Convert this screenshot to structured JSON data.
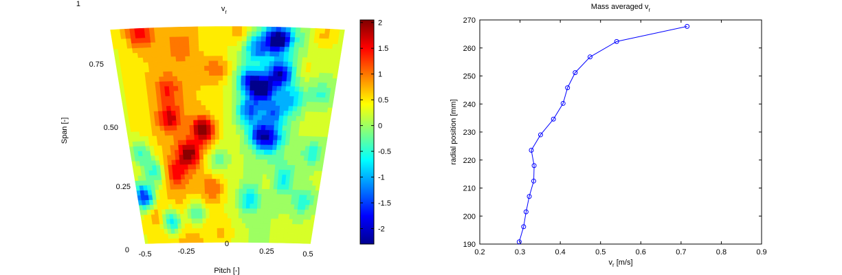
{
  "chart_data": [
    {
      "type": "heatmap",
      "title": "v",
      "title_subscript": "r",
      "xlabel": "Pitch [-]",
      "ylabel": "Span [-]",
      "x_tick_labels": [
        "-0.5",
        "-0.25",
        "0",
        "0.25",
        "0.5"
      ],
      "y_tick_labels": [
        "0",
        "0.25",
        "0.50",
        "0.75",
        "1"
      ],
      "colorbar": {
        "range": [
          -2.3,
          2.05
        ],
        "tick_values": [
          2,
          1.5,
          1,
          0.5,
          0,
          -0.5,
          -1,
          -1.5,
          -2
        ],
        "tick_labels": [
          "2",
          "1.5",
          "1",
          "0.5",
          "0",
          "-0.5",
          "-1",
          "-1.5",
          "-2"
        ]
      },
      "domain": "annular sector (wider at top span, narrower at hub)",
      "hotspots": [
        {
          "pitch": -0.38,
          "span": 0.97,
          "value": 1.2
        },
        {
          "pitch": -0.28,
          "span": 0.58,
          "value": 1.3
        },
        {
          "pitch": -0.12,
          "span": 0.52,
          "value": 1.9
        },
        {
          "pitch": -0.2,
          "span": 0.41,
          "value": 1.7
        },
        {
          "pitch": -0.28,
          "span": 0.33,
          "value": 1.1
        },
        {
          "pitch": -0.28,
          "span": 0.71,
          "value": 0.9
        },
        {
          "pitch": -0.05,
          "span": 0.8,
          "value": 0.9
        },
        {
          "pitch": -0.2,
          "span": 0.9,
          "value": 0.6
        },
        {
          "pitch": 0.05,
          "span": 0.97,
          "value": 0.8
        },
        {
          "pitch": -0.08,
          "span": 0.25,
          "value": 0.9
        },
        {
          "pitch": 0.42,
          "span": 0.97,
          "value": 0.8
        },
        {
          "pitch": 0.36,
          "span": 0.82,
          "value": 0.6
        },
        {
          "pitch": 0.22,
          "span": 0.28,
          "value": 0.5
        },
        {
          "pitch": 0.4,
          "span": 0.55,
          "value": 0.4
        },
        {
          "pitch": -0.42,
          "span": 0.14,
          "value": 0.6
        },
        {
          "pitch": 0.3,
          "span": 0.06,
          "value": 0.5
        },
        {
          "pitch": -0.02,
          "span": 0.05,
          "value": 0.5
        },
        {
          "pitch": 0.13,
          "span": 0.9,
          "value": -1.0
        },
        {
          "pitch": 0.22,
          "span": 0.94,
          "value": -2.3
        },
        {
          "pitch": 0.1,
          "span": 0.75,
          "value": -1.4
        },
        {
          "pitch": 0.16,
          "span": 0.71,
          "value": -2.1
        },
        {
          "pitch": 0.24,
          "span": 0.78,
          "value": -1.8
        },
        {
          "pitch": 0.1,
          "span": 0.61,
          "value": -1.3
        },
        {
          "pitch": 0.16,
          "span": 0.5,
          "value": -1.5
        },
        {
          "pitch": 0.22,
          "span": 0.48,
          "value": -1.1
        },
        {
          "pitch": 0.22,
          "span": 0.6,
          "value": -1.0
        },
        {
          "pitch": 0.3,
          "span": 0.66,
          "value": -0.8
        },
        {
          "pitch": 0.3,
          "span": 0.3,
          "value": -0.6
        },
        {
          "pitch": -0.46,
          "span": 0.22,
          "value": -2.0
        },
        {
          "pitch": -0.38,
          "span": 0.33,
          "value": -0.9
        },
        {
          "pitch": -0.32,
          "span": 0.1,
          "value": -1.3
        },
        {
          "pitch": -0.44,
          "span": 0.42,
          "value": -0.7
        },
        {
          "pitch": -0.18,
          "span": 0.14,
          "value": -0.9
        },
        {
          "pitch": 0.12,
          "span": 0.2,
          "value": -0.8
        },
        {
          "pitch": 0.42,
          "span": 0.2,
          "value": -0.6
        },
        {
          "pitch": 0.44,
          "span": 0.42,
          "value": -0.5
        },
        {
          "pitch": -0.05,
          "span": 0.38,
          "value": -0.5
        },
        {
          "pitch": 0.44,
          "span": 0.7,
          "value": -0.4
        }
      ]
    },
    {
      "type": "line",
      "title": "Mass averaged v",
      "title_subscript": "r",
      "xlabel": "v",
      "xlabel_subscript": "r",
      "xlabel_unit": " [m/s]",
      "ylabel": "radial position [mm]",
      "xlim": [
        0.2,
        0.9
      ],
      "ylim": [
        190,
        270
      ],
      "x_ticks": [
        0.2,
        0.3,
        0.4,
        0.5,
        0.6,
        0.7,
        0.8,
        0.9
      ],
      "x_tick_labels": [
        "0.2",
        "0.3",
        "0.4",
        "0.5",
        "0.6",
        "0.7",
        "0.8",
        "0.9"
      ],
      "y_ticks": [
        190,
        200,
        210,
        220,
        230,
        240,
        250,
        260,
        270
      ],
      "y_tick_labels": [
        "190",
        "200",
        "210",
        "220",
        "230",
        "240",
        "250",
        "260",
        "270"
      ],
      "grid": false,
      "line_color": "#0000ff",
      "marker": "circle",
      "points": [
        {
          "x": 0.298,
          "y": 190.8
        },
        {
          "x": 0.309,
          "y": 196.2
        },
        {
          "x": 0.315,
          "y": 201.5
        },
        {
          "x": 0.323,
          "y": 207.0
        },
        {
          "x": 0.334,
          "y": 212.5
        },
        {
          "x": 0.335,
          "y": 218.0
        },
        {
          "x": 0.328,
          "y": 223.5
        },
        {
          "x": 0.351,
          "y": 229.0
        },
        {
          "x": 0.383,
          "y": 234.6
        },
        {
          "x": 0.407,
          "y": 240.2
        },
        {
          "x": 0.418,
          "y": 245.8
        },
        {
          "x": 0.437,
          "y": 251.2
        },
        {
          "x": 0.474,
          "y": 256.8
        },
        {
          "x": 0.54,
          "y": 262.3
        },
        {
          "x": 0.715,
          "y": 267.7
        }
      ]
    }
  ]
}
